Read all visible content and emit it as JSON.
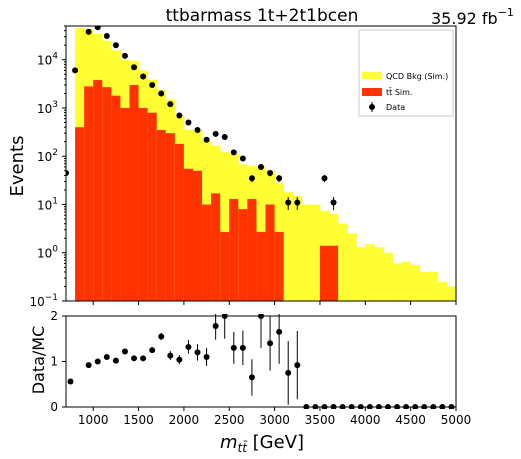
{
  "header": {
    "title": "ttbarmass  1t+2t1bcen",
    "lumi_value": "35.92 fb",
    "lumi_exponent": "−1"
  },
  "colors": {
    "qcd": "#ffff33",
    "ttbar": "#ff3300",
    "data": "#000000"
  },
  "chart_data": [
    {
      "type": "bar",
      "subtype": "stacked-histogram",
      "yscale": "log",
      "ylabel": "Events",
      "xlim": [
        700,
        5000
      ],
      "ylim": [
        0.1,
        50000
      ],
      "yticks": [
        {
          "value": 0.1,
          "base": "10",
          "exp": "−1"
        },
        {
          "value": 1,
          "base": "10",
          "exp": "0"
        },
        {
          "value": 10,
          "base": "10",
          "exp": "1"
        },
        {
          "value": 100,
          "base": "10",
          "exp": "2"
        },
        {
          "value": 1000,
          "base": "10",
          "exp": "3"
        },
        {
          "value": 10000,
          "base": "10",
          "exp": "4"
        }
      ],
      "bin_edges": [
        800,
        900,
        1000,
        1100,
        1200,
        1300,
        1400,
        1500,
        1600,
        1700,
        1800,
        1900,
        2000,
        2100,
        2200,
        2300,
        2400,
        2500,
        2600,
        2700,
        2800,
        2900,
        3000,
        3100,
        3200,
        3300,
        3400,
        3500,
        3600,
        3700,
        3800,
        3900,
        4000,
        4100,
        4200,
        4300,
        4400,
        4500,
        4600,
        4700,
        4800,
        4900,
        5000
      ],
      "series": [
        {
          "name": "tt̄ Sim.",
          "color_key": "ttbar",
          "values": [
            400,
            2800,
            3800,
            2700,
            1800,
            1000,
            3000,
            1000,
            800,
            350,
            300,
            180,
            55,
            50,
            10,
            17,
            2.7,
            13,
            8,
            13,
            2.7,
            10,
            2.7,
            0,
            0,
            0,
            0,
            1.4,
            1.4,
            0,
            0,
            0,
            0,
            0,
            0,
            0,
            0,
            0,
            0,
            0,
            0,
            0
          ]
        },
        {
          "name": "QCD Bkg (Sim.)",
          "color_key": "qcd",
          "values": [
            45000,
            40000,
            31000,
            22000,
            14000,
            9000,
            6500,
            5000,
            3000,
            2000,
            1200,
            500,
            300,
            300,
            200,
            150,
            120,
            100,
            60,
            50,
            60,
            40,
            25,
            18,
            15,
            10,
            10,
            6,
            5,
            4,
            2.5,
            1.3,
            1.5,
            1.3,
            1.0,
            0.6,
            0.65,
            0.55,
            0.4,
            0.4,
            0.25,
            0.2
          ]
        }
      ],
      "data_points": {
        "name": "Data",
        "x": [
          700,
          800,
          950,
          1050,
          1150,
          1250,
          1350,
          1450,
          1550,
          1650,
          1750,
          1850,
          1950,
          2050,
          2150,
          2250,
          2350,
          2450,
          2550,
          2650,
          2750,
          2850,
          2950,
          3050,
          3150,
          3250,
          3550,
          3650
        ],
        "y": [
          45,
          6000,
          38000,
          47000,
          31000,
          20000,
          12000,
          7000,
          4500,
          3000,
          2000,
          1200,
          700,
          500,
          350,
          220,
          290,
          250,
          120,
          90,
          35,
          60,
          45,
          35,
          11,
          11,
          35,
          11
        ]
      },
      "legend": {
        "placement": "top-right",
        "entries": [
          "QCD Bkg (Sim.)",
          "tt̄ Sim.",
          "Data"
        ]
      }
    },
    {
      "type": "scatter",
      "subtype": "ratio",
      "ylabel": "Data/MC",
      "xlabel": "m_tt̄ [GeV]",
      "xlim": [
        700,
        5000
      ],
      "ylim": [
        0,
        2
      ],
      "xticks": [
        1000,
        1500,
        2000,
        2500,
        3000,
        3500,
        4000,
        4500,
        5000
      ],
      "yticks": [
        0,
        1,
        2
      ],
      "x": [
        750,
        950,
        1050,
        1150,
        1250,
        1350,
        1450,
        1550,
        1650,
        1750,
        1850,
        1950,
        2050,
        2150,
        2250,
        2350,
        2450,
        2550,
        2650,
        2750,
        2850,
        2950,
        3050,
        3150,
        3250,
        3350,
        3450,
        3550,
        3650,
        3750,
        3850,
        3950,
        4050,
        4150,
        4250,
        4350,
        4450,
        4550,
        4650,
        4750,
        4850,
        4950
      ],
      "y": [
        0.56,
        0.92,
        1.0,
        1.1,
        1.02,
        1.22,
        1.07,
        1.07,
        1.25,
        1.55,
        1.13,
        1.04,
        1.32,
        1.2,
        1.1,
        1.78,
        2.0,
        1.3,
        1.3,
        0.65,
        2.0,
        1.4,
        1.65,
        0.75,
        0.92,
        0,
        0,
        0,
        0,
        0,
        0,
        0,
        0,
        0,
        0,
        0,
        0,
        0,
        0,
        0,
        0,
        0
      ],
      "yerr": [
        0.03,
        0.01,
        0.01,
        0.01,
        0.01,
        0.02,
        0.03,
        0.03,
        0.04,
        0.08,
        0.1,
        0.1,
        0.15,
        0.18,
        0.2,
        0.3,
        0.5,
        0.35,
        0.38,
        0.4,
        0.7,
        0.6,
        0.7,
        0.7,
        0.75,
        0,
        0,
        0,
        0,
        0,
        0,
        0,
        0,
        0,
        0,
        0,
        0,
        0,
        0,
        0,
        0,
        0
      ]
    }
  ]
}
